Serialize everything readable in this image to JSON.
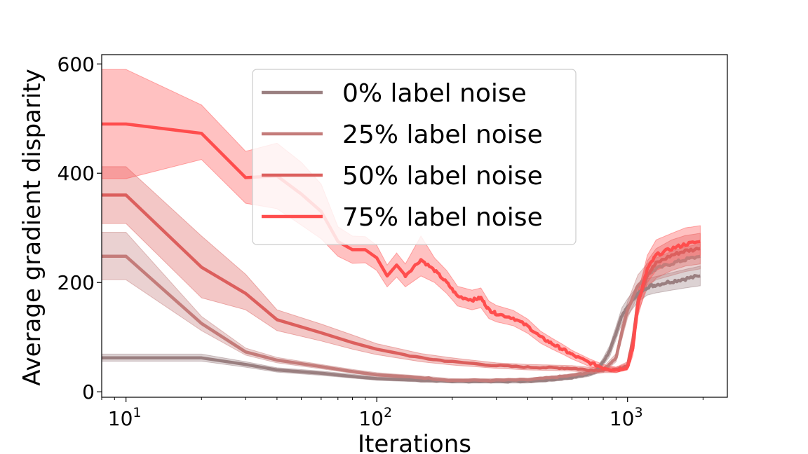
{
  "chart_data": {
    "type": "line",
    "title": "",
    "xlabel": "Iterations",
    "ylabel": "Average gradient disparity",
    "xscale": "log",
    "xlim": [
      8,
      2500
    ],
    "ylim": [
      -10,
      617
    ],
    "xticks": [
      {
        "value": 10,
        "base": "10",
        "exp": "1"
      },
      {
        "value": 100,
        "base": "10",
        "exp": "2"
      },
      {
        "value": 1000,
        "base": "10",
        "exp": "3"
      }
    ],
    "yticks": [
      0,
      200,
      400,
      600
    ],
    "grid": false,
    "legend_position": "top-center",
    "series": [
      {
        "name": "0% label noise",
        "color": "#9a7f80",
        "points": [
          [
            8,
            62
          ],
          [
            10,
            62
          ],
          [
            20,
            62
          ],
          [
            30,
            50
          ],
          [
            40,
            40
          ],
          [
            60,
            34
          ],
          [
            80,
            28
          ],
          [
            100,
            24
          ],
          [
            150,
            21
          ],
          [
            200,
            19
          ],
          [
            300,
            19
          ],
          [
            400,
            19
          ],
          [
            500,
            22
          ],
          [
            600,
            26
          ],
          [
            700,
            32
          ],
          [
            750,
            38
          ],
          [
            800,
            55
          ],
          [
            850,
            75
          ],
          [
            900,
            108
          ],
          [
            950,
            140
          ],
          [
            1000,
            155
          ],
          [
            1100,
            180
          ],
          [
            1200,
            192
          ],
          [
            1300,
            196
          ],
          [
            1500,
            202
          ],
          [
            1700,
            207
          ],
          [
            1950,
            212
          ]
        ],
        "band": [
          [
            8,
            56,
            69
          ],
          [
            10,
            56,
            69
          ],
          [
            20,
            56,
            69
          ],
          [
            30,
            45,
            55
          ],
          [
            40,
            36,
            44
          ],
          [
            60,
            30,
            38
          ],
          [
            80,
            25,
            32
          ],
          [
            100,
            21,
            27
          ],
          [
            150,
            18,
            24
          ],
          [
            200,
            16,
            22
          ],
          [
            300,
            16,
            22
          ],
          [
            400,
            16,
            22
          ],
          [
            500,
            19,
            25
          ],
          [
            600,
            23,
            29
          ],
          [
            700,
            28,
            36
          ],
          [
            750,
            33,
            43
          ],
          [
            800,
            48,
            62
          ],
          [
            850,
            65,
            85
          ],
          [
            900,
            96,
            120
          ],
          [
            950,
            126,
            154
          ],
          [
            1000,
            140,
            170
          ],
          [
            1100,
            165,
            195
          ],
          [
            1200,
            177,
            207
          ],
          [
            1300,
            181,
            211
          ],
          [
            1500,
            186,
            218
          ],
          [
            1700,
            190,
            224
          ],
          [
            1950,
            194,
            230
          ]
        ]
      },
      {
        "name": "25% label noise",
        "color": "#c47c7a",
        "points": [
          [
            8,
            248
          ],
          [
            10,
            248
          ],
          [
            20,
            125
          ],
          [
            30,
            73
          ],
          [
            40,
            58
          ],
          [
            60,
            46
          ],
          [
            80,
            37
          ],
          [
            100,
            31
          ],
          [
            150,
            26
          ],
          [
            200,
            21
          ],
          [
            300,
            21
          ],
          [
            400,
            22
          ],
          [
            500,
            26
          ],
          [
            600,
            30
          ],
          [
            700,
            35
          ],
          [
            800,
            40
          ],
          [
            900,
            62
          ],
          [
            950,
            110
          ],
          [
            1000,
            150
          ],
          [
            1100,
            195
          ],
          [
            1200,
            215
          ],
          [
            1300,
            225
          ],
          [
            1500,
            235
          ],
          [
            1700,
            242
          ],
          [
            1950,
            248
          ]
        ],
        "band": [
          [
            8,
            205,
            292
          ],
          [
            10,
            205,
            292
          ],
          [
            20,
            112,
            138
          ],
          [
            30,
            67,
            80
          ],
          [
            40,
            53,
            63
          ],
          [
            60,
            42,
            50
          ],
          [
            80,
            34,
            41
          ],
          [
            100,
            28,
            35
          ],
          [
            150,
            23,
            29
          ],
          [
            200,
            18,
            24
          ],
          [
            300,
            18,
            24
          ],
          [
            400,
            19,
            25
          ],
          [
            500,
            23,
            29
          ],
          [
            600,
            27,
            33
          ],
          [
            700,
            31,
            39
          ],
          [
            800,
            35,
            45
          ],
          [
            900,
            55,
            70
          ],
          [
            950,
            97,
            123
          ],
          [
            1000,
            135,
            165
          ],
          [
            1100,
            176,
            214
          ],
          [
            1200,
            195,
            235
          ],
          [
            1300,
            205,
            245
          ],
          [
            1500,
            213,
            257
          ],
          [
            1700,
            220,
            265
          ],
          [
            1950,
            225,
            271
          ]
        ]
      },
      {
        "name": "50% label noise",
        "color": "#dc5f5d",
        "points": [
          [
            8,
            360
          ],
          [
            10,
            360
          ],
          [
            20,
            228
          ],
          [
            30,
            180
          ],
          [
            40,
            132
          ],
          [
            60,
            108
          ],
          [
            80,
            90
          ],
          [
            100,
            78
          ],
          [
            150,
            62
          ],
          [
            200,
            55
          ],
          [
            300,
            48
          ],
          [
            400,
            45
          ],
          [
            500,
            44
          ],
          [
            600,
            43
          ],
          [
            700,
            40
          ],
          [
            800,
            40
          ],
          [
            900,
            40
          ],
          [
            1000,
            48
          ],
          [
            1050,
            95
          ],
          [
            1100,
            165
          ],
          [
            1200,
            215
          ],
          [
            1300,
            235
          ],
          [
            1500,
            250
          ],
          [
            1700,
            258
          ],
          [
            1950,
            262
          ]
        ],
        "band": [
          [
            8,
            308,
            412
          ],
          [
            10,
            308,
            412
          ],
          [
            20,
            172,
            285
          ],
          [
            30,
            150,
            215
          ],
          [
            40,
            112,
            150
          ],
          [
            60,
            93,
            124
          ],
          [
            80,
            78,
            104
          ],
          [
            100,
            68,
            88
          ],
          [
            150,
            55,
            70
          ],
          [
            200,
            49,
            62
          ],
          [
            300,
            43,
            53
          ],
          [
            400,
            40,
            50
          ],
          [
            500,
            39,
            49
          ],
          [
            600,
            38,
            48
          ],
          [
            700,
            35,
            45
          ],
          [
            800,
            35,
            45
          ],
          [
            900,
            35,
            45
          ],
          [
            1000,
            42,
            55
          ],
          [
            1050,
            82,
            108
          ],
          [
            1100,
            145,
            185
          ],
          [
            1200,
            190,
            240
          ],
          [
            1300,
            208,
            262
          ],
          [
            1500,
            222,
            278
          ],
          [
            1700,
            230,
            286
          ],
          [
            1950,
            234,
            290
          ]
        ]
      },
      {
        "name": "75% label noise",
        "color": "#ff4d4d",
        "points": [
          [
            8,
            490
          ],
          [
            10,
            490
          ],
          [
            20,
            473
          ],
          [
            30,
            392
          ],
          [
            40,
            395
          ],
          [
            50,
            362
          ],
          [
            60,
            330
          ],
          [
            70,
            275
          ],
          [
            80,
            260
          ],
          [
            90,
            260
          ],
          [
            100,
            245
          ],
          [
            110,
            212
          ],
          [
            120,
            232
          ],
          [
            130,
            213
          ],
          [
            150,
            242
          ],
          [
            170,
            222
          ],
          [
            190,
            200
          ],
          [
            210,
            175
          ],
          [
            240,
            168
          ],
          [
            260,
            172
          ],
          [
            280,
            150
          ],
          [
            300,
            143
          ],
          [
            350,
            135
          ],
          [
            400,
            120
          ],
          [
            450,
            100
          ],
          [
            500,
            88
          ],
          [
            550,
            78
          ],
          [
            600,
            68
          ],
          [
            700,
            54
          ],
          [
            800,
            44
          ],
          [
            900,
            40
          ],
          [
            1000,
            45
          ],
          [
            1050,
            80
          ],
          [
            1100,
            160
          ],
          [
            1200,
            225
          ],
          [
            1300,
            250
          ],
          [
            1500,
            262
          ],
          [
            1700,
            270
          ],
          [
            1950,
            275
          ]
        ],
        "band": [
          [
            8,
            390,
            590
          ],
          [
            10,
            390,
            590
          ],
          [
            20,
            425,
            525
          ],
          [
            30,
            345,
            440
          ],
          [
            40,
            335,
            455
          ],
          [
            50,
            305,
            420
          ],
          [
            60,
            280,
            380
          ],
          [
            70,
            248,
            302
          ],
          [
            80,
            235,
            285
          ],
          [
            90,
            236,
            284
          ],
          [
            100,
            222,
            268
          ],
          [
            110,
            192,
            232
          ],
          [
            120,
            210,
            254
          ],
          [
            130,
            192,
            234
          ],
          [
            150,
            212,
            285
          ],
          [
            170,
            200,
            245
          ],
          [
            190,
            180,
            222
          ],
          [
            210,
            157,
            193
          ],
          [
            240,
            150,
            186
          ],
          [
            260,
            154,
            190
          ],
          [
            280,
            134,
            166
          ],
          [
            300,
            128,
            158
          ],
          [
            350,
            121,
            149
          ],
          [
            400,
            107,
            133
          ],
          [
            450,
            89,
            111
          ],
          [
            500,
            78,
            98
          ],
          [
            550,
            69,
            87
          ],
          [
            600,
            60,
            76
          ],
          [
            700,
            47,
            61
          ],
          [
            800,
            38,
            50
          ],
          [
            900,
            35,
            45
          ],
          [
            1000,
            40,
            52
          ],
          [
            1050,
            66,
            94
          ],
          [
            1100,
            138,
            182
          ],
          [
            1200,
            200,
            250
          ],
          [
            1300,
            222,
            278
          ],
          [
            1500,
            235,
            290
          ],
          [
            1700,
            242,
            300
          ],
          [
            1950,
            246,
            304
          ]
        ]
      }
    ]
  }
}
